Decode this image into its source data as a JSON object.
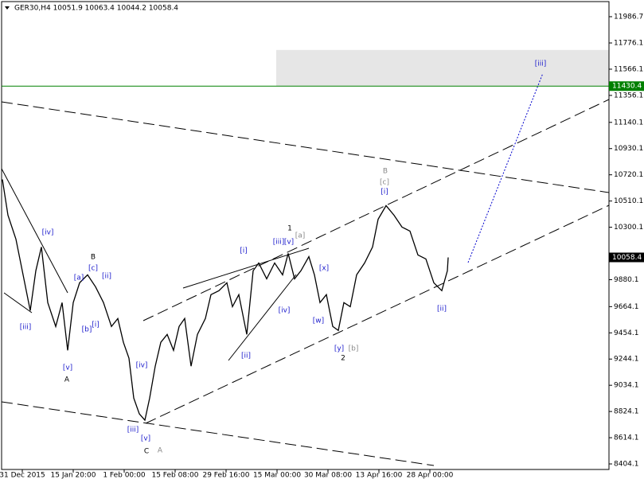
{
  "chart_data": {
    "type": "line",
    "title": "GER30,H4  10051.9 10063.4 10044.2 10058.4",
    "color": "#000000",
    "x": [
      0.5,
      4,
      9,
      14,
      18,
      21.5,
      25,
      29,
      34,
      38,
      41.5,
      45,
      49,
      54,
      59,
      64,
      69,
      73,
      76.5,
      80,
      83,
      86.5,
      90,
      93,
      96.5,
      100,
      104,
      108,
      111.5,
      115,
      119,
      123,
      128,
      131.5,
      136.5,
      141.5,
      145,
      149,
      154,
      158,
      161.5,
      166.5,
      171.5,
      176.5,
      180,
      184,
      188,
      193,
      196.5,
      200,
      204,
      208,
      211.5,
      215,
      219,
      223,
      228,
      233,
      236.5,
      241.5,
      246.5,
      251.5,
      256.5,
      261.5,
      266.5,
      271.5,
      276.5,
      280,
      280.5
    ],
    "values": [
      10683,
      10396,
      10205,
      9887,
      9632,
      9951,
      10142,
      9696,
      9505,
      9696,
      9314,
      9696,
      9855,
      9919,
      9823,
      9696,
      9505,
      9569,
      9378,
      9251,
      8932,
      8805,
      8754,
      8932,
      9187,
      9378,
      9441,
      9314,
      9505,
      9569,
      9187,
      9441,
      9569,
      9760,
      9792,
      9855,
      9664,
      9760,
      9441,
      9951,
      10014,
      9887,
      10014,
      9919,
      10091,
      9887,
      9951,
      10065,
      9919,
      9696,
      9760,
      9505,
      9473,
      9696,
      9664,
      9919,
      10014,
      10142,
      10364,
      10473,
      10396,
      10301,
      10269,
      10078,
      10046,
      9855,
      9792,
      9951,
      10058.4
    ],
    "xlim": [
      0,
      381.5
    ],
    "xticks": [
      {
        "value": 13,
        "label": "31 Dec 2015"
      },
      {
        "value": 45,
        "label": "15 Jan 20:00"
      },
      {
        "value": 77,
        "label": "1 Feb 00:00"
      },
      {
        "value": 109,
        "label": "15 Feb 08:00"
      },
      {
        "value": 141,
        "label": "29 Feb 16:00"
      },
      {
        "value": 173,
        "label": "15 Mar 00:00"
      },
      {
        "value": 205,
        "label": "30 Mar 08:00"
      },
      {
        "value": 237,
        "label": "13 Apr 16:00"
      },
      {
        "value": 269,
        "label": "28 Apr 00:00"
      }
    ],
    "ylim": [
      8359.6,
      12107.6
    ],
    "yticks": [
      8404.1,
      8614.1,
      8824.1,
      9034.1,
      9244.1,
      9454.1,
      9664.1,
      9880.1,
      10300.1,
      10510.1,
      10720.1,
      10930.1,
      11140.1,
      11356.1,
      11566.1,
      11776.1,
      11986.7
    ],
    "level": {
      "value": 11430.4,
      "color": "#008000"
    },
    "zone": {
      "values": [
        11430.4,
        11720
      ],
      "color": "#e6e6e6"
    },
    "last_price": 10058.4,
    "annotations": [
      "[iv]",
      "[iii]",
      "[v]",
      "A",
      "[a]",
      "B",
      "[c]",
      "[ii]",
      "[b]",
      "[i]",
      "[iv]",
      "[iii]",
      "[v]",
      "C",
      "A",
      "[i]",
      "[iii]",
      "[v]",
      "1",
      "[a]",
      "[ii]",
      "[iv]",
      "[x]",
      "[w]",
      "[y]",
      "[b]",
      "2",
      "B",
      "[c]",
      "[i]",
      "[ii]",
      "[iii]"
    ]
  }
}
